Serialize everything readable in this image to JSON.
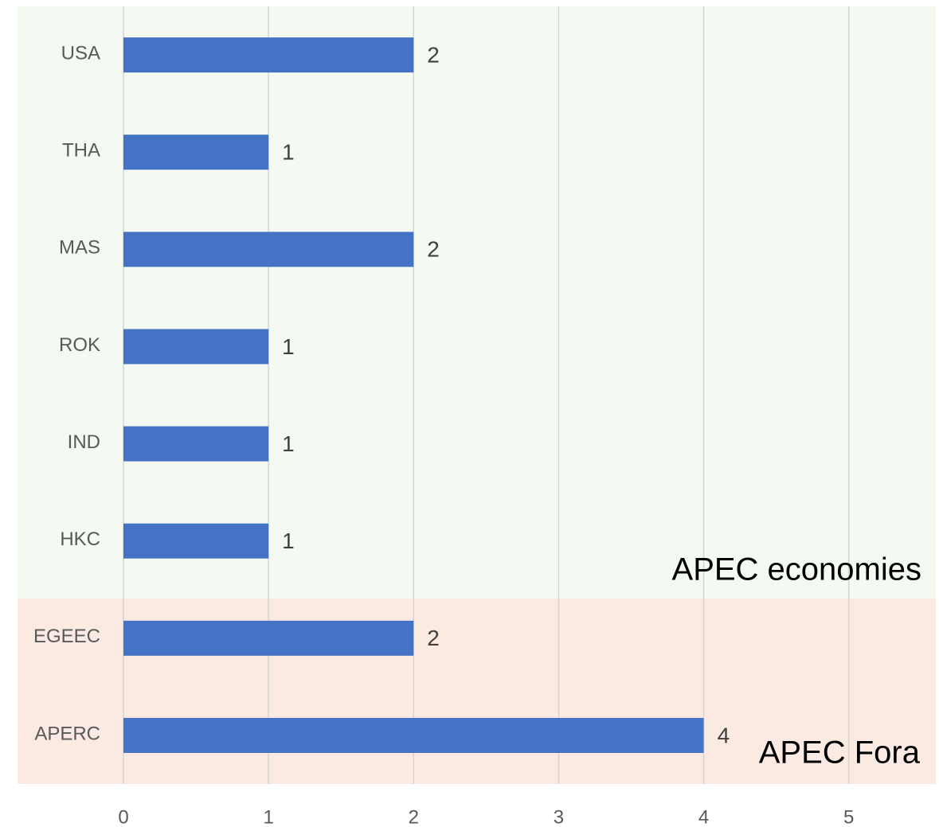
{
  "chart_data": {
    "type": "barh",
    "categories": [
      "USA",
      "THA",
      "MAS",
      "ROK",
      "IND",
      "HKC",
      "EGEEC",
      "APERC"
    ],
    "values": [
      2,
      1,
      2,
      1,
      1,
      1,
      2,
      4
    ],
    "color": "#4472c4",
    "xlim": [
      0,
      5.6
    ],
    "xticks": [
      0,
      1,
      2,
      3,
      4,
      5
    ],
    "grid": true,
    "annotations": [
      "APEC economies",
      "APEC Fora"
    ]
  }
}
